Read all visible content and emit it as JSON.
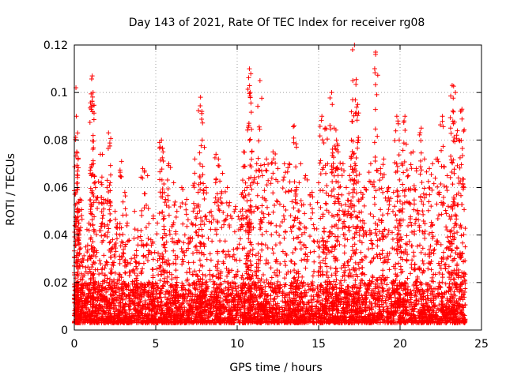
{
  "chart_data": {
    "type": "scatter",
    "title": "Day 143 of 2021, Rate Of TEC Index for receiver rg08",
    "xlabel": "GPS time / hours",
    "ylabel": "ROTI / TECUs",
    "xlim": [
      0,
      25
    ],
    "ylim": [
      0,
      0.12
    ],
    "x_ticks": [
      0,
      5,
      10,
      15,
      20,
      25
    ],
    "x_tick_labels": [
      "0",
      "5",
      "10",
      "15",
      "20",
      "25"
    ],
    "y_ticks": [
      0,
      0.02,
      0.04,
      0.06,
      0.08,
      0.1,
      0.12
    ],
    "y_tick_labels": [
      "0",
      "0.02",
      "0.04",
      "0.06",
      "0.08",
      "0.1",
      "0.12"
    ],
    "grid": true,
    "marker": "plus",
    "marker_color": "#ff0000",
    "series": [
      {
        "name": "ROTI",
        "x": [
          0.1,
          0.12,
          0.15,
          0.2,
          0.25,
          0.35,
          0.5,
          0.7,
          0.9,
          1.05,
          1.1,
          1.15,
          1.3,
          1.6,
          1.8,
          1.9,
          2.1,
          2.2,
          2.35,
          2.5,
          2.8,
          2.9,
          3.1,
          3.25,
          3.5,
          3.7,
          3.9,
          4.2,
          4.5,
          4.7,
          4.85,
          5.1,
          5.35,
          5.45,
          5.6,
          5.8,
          6.1,
          6.3,
          6.6,
          6.9,
          7.2,
          7.4,
          7.6,
          7.75,
          7.85,
          8.1,
          8.4,
          8.7,
          8.85,
          9.1,
          9.4,
          9.6,
          9.9,
          10.2,
          10.4,
          10.6,
          10.75,
          10.8,
          10.9,
          11.2,
          11.4,
          11.55,
          11.8,
          12.2,
          12.5,
          12.9,
          13.2,
          13.5,
          13.65,
          13.9,
          14.2,
          14.6,
          15.0,
          15.2,
          15.4,
          15.55,
          15.8,
          15.95,
          16.1,
          16.2,
          16.5,
          16.7,
          16.9,
          17.1,
          17.2,
          17.4,
          17.6,
          17.8,
          18.2,
          18.5,
          18.8,
          19.0,
          19.3,
          19.6,
          19.8,
          19.95,
          20.1,
          20.3,
          20.5,
          20.8,
          21.0,
          21.3,
          21.5,
          21.8,
          22.0,
          22.3,
          22.6,
          22.9,
          23.1,
          23.2,
          23.4,
          23.6,
          23.8,
          23.9
        ],
        "y": [
          0.102,
          0.09,
          0.075,
          0.06,
          0.045,
          0.055,
          0.03,
          0.035,
          0.045,
          0.065,
          0.107,
          0.1,
          0.06,
          0.074,
          0.055,
          0.04,
          0.083,
          0.062,
          0.038,
          0.05,
          0.04,
          0.071,
          0.058,
          0.045,
          0.03,
          0.05,
          0.042,
          0.068,
          0.065,
          0.038,
          0.048,
          0.045,
          0.08,
          0.075,
          0.055,
          0.07,
          0.062,
          0.05,
          0.06,
          0.055,
          0.045,
          0.072,
          0.058,
          0.098,
          0.08,
          0.06,
          0.05,
          0.074,
          0.072,
          0.066,
          0.06,
          0.048,
          0.052,
          0.05,
          0.075,
          0.06,
          0.11,
          0.1,
          0.075,
          0.07,
          0.105,
          0.065,
          0.072,
          0.075,
          0.068,
          0.07,
          0.07,
          0.086,
          0.06,
          0.07,
          0.065,
          0.058,
          0.062,
          0.09,
          0.085,
          0.07,
          0.1,
          0.085,
          0.08,
          0.075,
          0.07,
          0.06,
          0.065,
          0.105,
          0.12,
          0.095,
          0.058,
          0.06,
          0.07,
          0.117,
          0.068,
          0.072,
          0.06,
          0.058,
          0.09,
          0.08,
          0.07,
          0.09,
          0.065,
          0.075,
          0.068,
          0.085,
          0.072,
          0.068,
          0.07,
          0.072,
          0.09,
          0.065,
          0.085,
          0.103,
          0.1,
          0.08,
          0.093,
          0.06
        ],
        "baseline": {
          "note": "Dense background band of points between 0.003 and about 0.02 TECU across the full 0 to 24 hour span",
          "y_min": 0.003,
          "y_max": 0.02,
          "x_min": 0,
          "x_max": 24
        }
      }
    ]
  }
}
